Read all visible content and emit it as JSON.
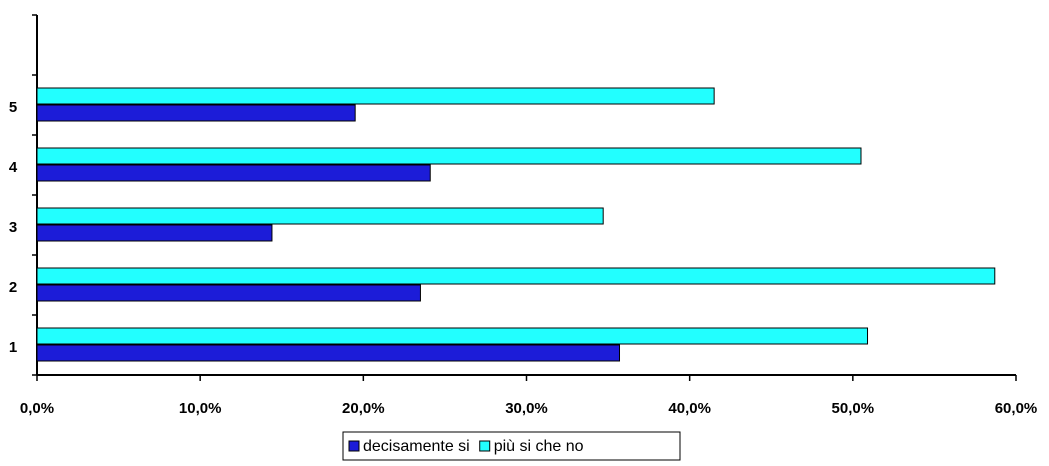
{
  "chart_data": {
    "type": "hbar",
    "categories": [
      "1",
      "2",
      "3",
      "4",
      "5",
      null
    ],
    "series": [
      {
        "name": "decisamente si",
        "color": "#1c1cd8",
        "values": [
          35.7,
          23.5,
          14.4,
          24.1,
          19.5,
          null
        ]
      },
      {
        "name": "più si che no",
        "color": "#22ffff",
        "values": [
          50.9,
          58.7,
          34.7,
          50.5,
          41.5,
          null
        ]
      }
    ],
    "xlim": [
      0,
      60
    ],
    "xticks": [
      {
        "value": 0,
        "label": "0,0%"
      },
      {
        "value": 10,
        "label": "10,0%"
      },
      {
        "value": 20,
        "label": "20,0%"
      },
      {
        "value": 30,
        "label": "30,0%"
      },
      {
        "value": 40,
        "label": "40,0%"
      },
      {
        "value": 50,
        "label": "50,0%"
      },
      {
        "value": 60,
        "label": "60,0%"
      }
    ],
    "legend": "bottom"
  }
}
